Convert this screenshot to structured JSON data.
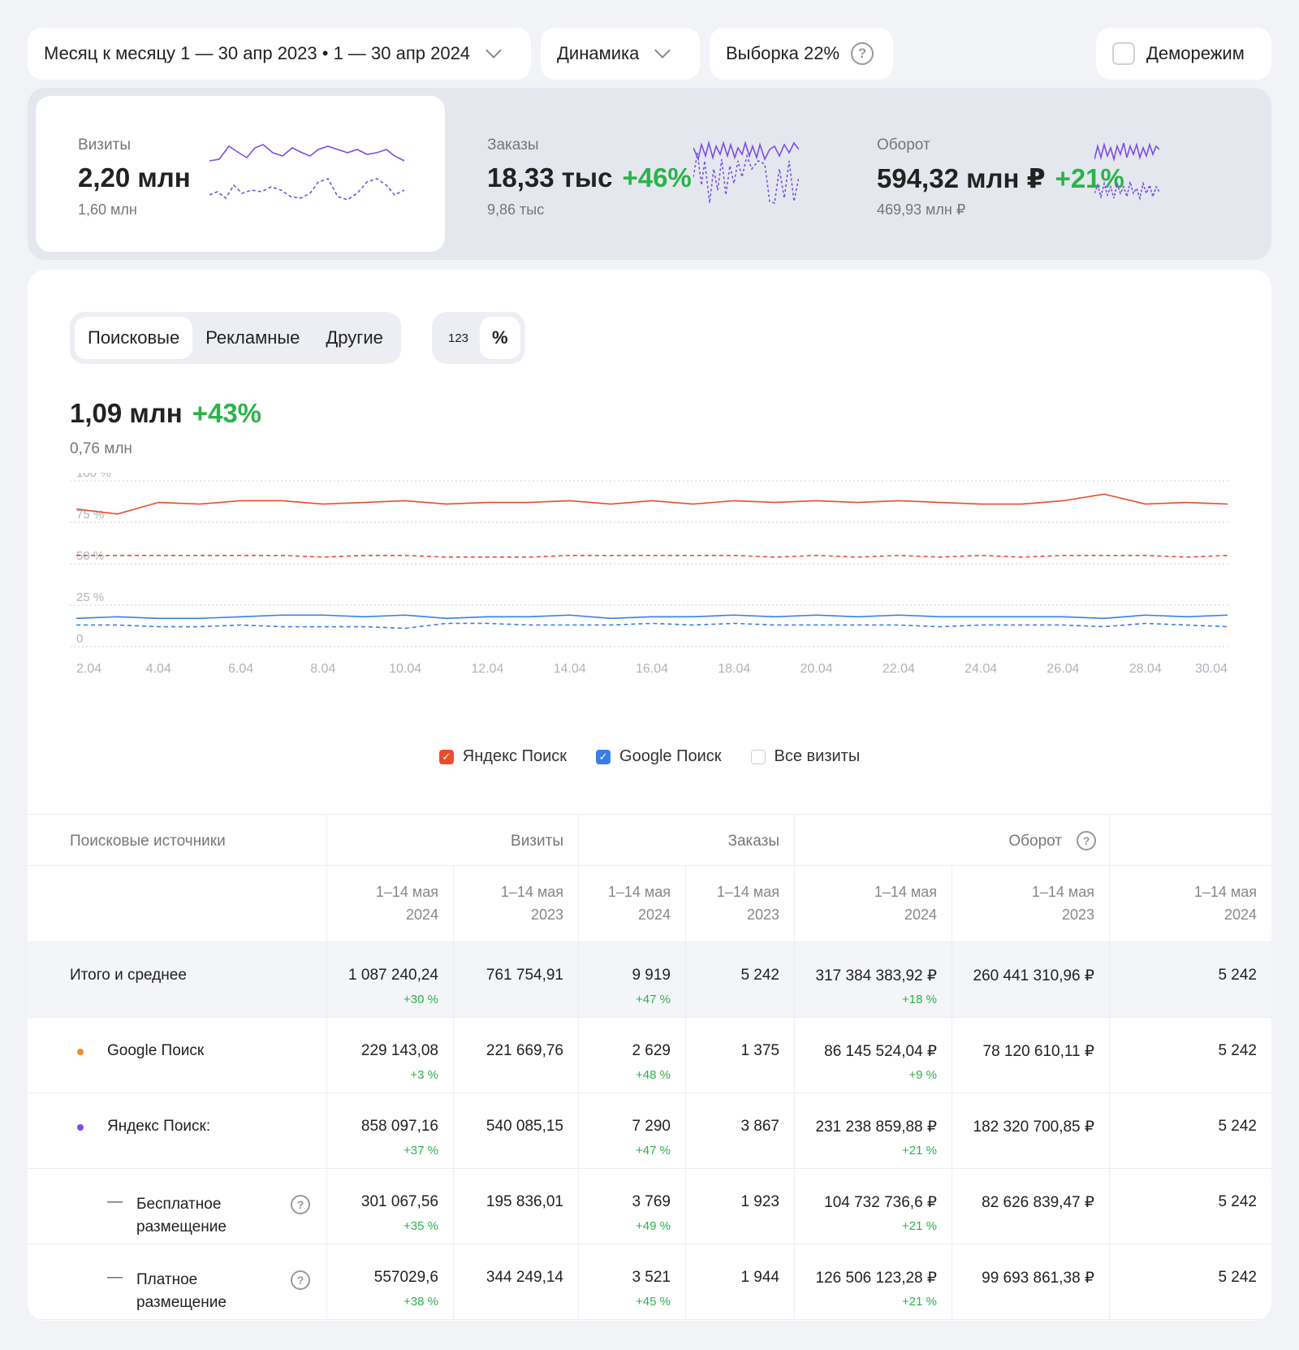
{
  "toolbar": {
    "period_label": "Месяц к месяцу 1 — 30 апр 2023 • 1 — 30 апр 2024",
    "mode_label": "Динамика",
    "sample_label": "Выборка 22%",
    "demo_label": "Деморежим"
  },
  "metrics": [
    {
      "label": "Визиты",
      "value": "2,20 млн",
      "delta": "",
      "prev": "1,60 млн"
    },
    {
      "label": "Заказы",
      "value": "18,33 тыс",
      "delta": "+46%",
      "prev": "9,86 тыс"
    },
    {
      "label": "Оборот",
      "value": "594,32 млн ₽",
      "delta": "+21%",
      "prev": "469,93 млн ₽"
    }
  ],
  "tabs": [
    {
      "label": "Поисковые"
    },
    {
      "label": "Рекламные"
    },
    {
      "label": "Другие"
    }
  ],
  "units": [
    {
      "label": "123"
    },
    {
      "label": "%"
    }
  ],
  "summary": {
    "value": "1,09 млн",
    "delta": "+43%",
    "prev": "0,76 млн"
  },
  "chart_data": {
    "type": "line",
    "x": [
      "2.04",
      "3.04",
      "4.04",
      "5.04",
      "6.04",
      "7.04",
      "8.04",
      "9.04",
      "10.04",
      "11.04",
      "12.04",
      "13.04",
      "14.04",
      "15.04",
      "16.04",
      "17.04",
      "18.04",
      "19.04",
      "20.04",
      "21.04",
      "22.04",
      "23.04",
      "24.04",
      "25.04",
      "26.04",
      "27.04",
      "28.04",
      "29.04",
      "30.04"
    ],
    "x_ticks": [
      "2.04",
      "4.04",
      "6.04",
      "8.04",
      "10.04",
      "12.04",
      "14.04",
      "16.04",
      "18.04",
      "20.04",
      "22.04",
      "24.04",
      "26.04",
      "28.04",
      "30.04"
    ],
    "y_ticks": [
      "100 %",
      "75 %",
      "50 %",
      "25 %",
      "0"
    ],
    "ylim": [
      0,
      100
    ],
    "series": [
      {
        "name": "Яндекс Поиск",
        "style": "solid",
        "color": "#e84d2c",
        "values": [
          83,
          80,
          87,
          86,
          88,
          88,
          86,
          87,
          88,
          86,
          87,
          87,
          88,
          86,
          88,
          86,
          88,
          87,
          88,
          87,
          88,
          87,
          86,
          86,
          88,
          92,
          86,
          87,
          86
        ]
      },
      {
        "name": "Яндекс Поиск",
        "style": "dashed",
        "color": "#e84d2c",
        "values": [
          55,
          55,
          55,
          55,
          55,
          55,
          54,
          55,
          55,
          54,
          54,
          54,
          55,
          55,
          55,
          55,
          55,
          54,
          55,
          54,
          55,
          54,
          55,
          54,
          55,
          55,
          55,
          54,
          55
        ]
      },
      {
        "name": "Google Поиск",
        "style": "solid",
        "color": "#3a7de8",
        "values": [
          17,
          18,
          17,
          17,
          18,
          19,
          19,
          18,
          19,
          17,
          18,
          18,
          19,
          17,
          18,
          18,
          19,
          18,
          19,
          18,
          19,
          18,
          18,
          18,
          18,
          17,
          19,
          18,
          19
        ]
      },
      {
        "name": "Google Поиск",
        "style": "dashed",
        "color": "#3a7de8",
        "values": [
          13,
          13,
          12,
          12,
          13,
          12,
          12,
          12,
          11,
          14,
          14,
          13,
          13,
          13,
          14,
          13,
          14,
          13,
          13,
          13,
          13,
          12,
          13,
          13,
          13,
          12,
          14,
          13,
          12
        ]
      }
    ]
  },
  "legend": [
    {
      "label": "Яндекс Поиск",
      "color": "#e84d2c",
      "checked": true
    },
    {
      "label": "Google Поиск",
      "color": "#3a7de8",
      "checked": true
    },
    {
      "label": "Все визиты",
      "color": "#cfd2d8",
      "checked": false
    }
  ],
  "table": {
    "group_headers": {
      "source": "Поисковые источники",
      "visits": "Визиты",
      "orders": "Заказы",
      "revenue": "Оборот"
    },
    "period_headers": [
      {
        "l1": "1–14 мая",
        "l2": "2024"
      },
      {
        "l1": "1–14 мая",
        "l2": "2023"
      },
      {
        "l1": "1–14 мая",
        "l2": "2024"
      },
      {
        "l1": "1–14 мая",
        "l2": "2023"
      },
      {
        "l1": "1–14 мая",
        "l2": "2024"
      },
      {
        "l1": "1–14 мая",
        "l2": "2023"
      },
      {
        "l1": "1–14 мая",
        "l2": "2024"
      }
    ],
    "rows": [
      {
        "name": "Итого и среднее",
        "name2": "",
        "v24": "1 087 240,24",
        "vp": "+30 %",
        "v23": "761 754,91",
        "o24": "9 919",
        "op": "+47 %",
        "o23": "5 242",
        "r24": "317 384 383,92 ₽",
        "rp": "+18 %",
        "r23": "260 441 310,96 ₽",
        "last": "5 242"
      },
      {
        "name": "Google  Поиск",
        "name2": "",
        "v24": "229 143,08",
        "vp": "+3 %",
        "v23": "221 669,76",
        "o24": "2 629",
        "op": "+48 %",
        "o23": "1 375",
        "r24": "86 145 524,04 ₽",
        "rp": "+9 %",
        "r23": "78 120 610,11 ₽",
        "last": "5 242"
      },
      {
        "name": "Яндекс Поиск:",
        "name2": "",
        "v24": "858 097,16",
        "vp": "+37 %",
        "v23": "540 085,15",
        "o24": "7 290",
        "op": "+47 %",
        "o23": "3 867",
        "r24": "231 238 859,88 ₽",
        "rp": "+21 %",
        "r23": "182 320 700,85 ₽",
        "last": "5 242"
      },
      {
        "name": "Бесплатное",
        "name2": "размещение",
        "v24": "301 067,56",
        "vp": "+35 %",
        "v23": "195 836,01",
        "o24": "3 769",
        "op": "+49 %",
        "o23": "1 923",
        "r24": "104 732 736,6 ₽",
        "rp": "+21 %",
        "r23": "82 626 839,47 ₽",
        "last": "5 242"
      },
      {
        "name": "Платное",
        "name2": "размещение",
        "v24": "557029,6",
        "vp": "+38 %",
        "v23": "344 249,14",
        "o24": "3 521",
        "op": "+45 %",
        "o23": "1 944",
        "r24": "126 506 123,28 ₽",
        "rp": "+21 %",
        "r23": "99 693 861,38 ₽",
        "last": "5 242"
      }
    ],
    "dash": "—"
  },
  "icons": {
    "help": "?",
    "check": "✓"
  },
  "colors": {
    "accent_green": "#2bb34b",
    "yandex": "#e84d2c",
    "google": "#3a7de8",
    "spark": "#7b4ee6",
    "dot_google": "#f28c28",
    "dot_yandex": "#7b4ee6"
  }
}
